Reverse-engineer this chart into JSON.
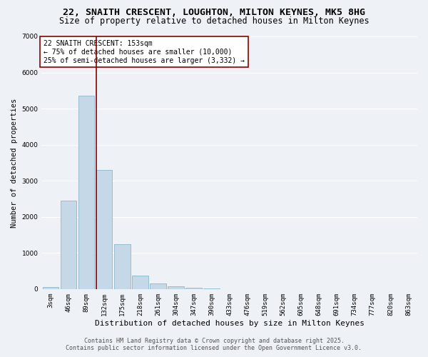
{
  "title": "22, SNAITH CRESCENT, LOUGHTON, MILTON KEYNES, MK5 8HG",
  "subtitle": "Size of property relative to detached houses in Milton Keynes",
  "xlabel": "Distribution of detached houses by size in Milton Keynes",
  "ylabel": "Number of detached properties",
  "categories": [
    "3sqm",
    "46sqm",
    "89sqm",
    "132sqm",
    "175sqm",
    "218sqm",
    "261sqm",
    "304sqm",
    "347sqm",
    "390sqm",
    "433sqm",
    "476sqm",
    "519sqm",
    "562sqm",
    "605sqm",
    "648sqm",
    "691sqm",
    "734sqm",
    "777sqm",
    "820sqm",
    "863sqm"
  ],
  "values": [
    50,
    2450,
    5350,
    3300,
    1250,
    380,
    150,
    80,
    30,
    10,
    5,
    3,
    2,
    1,
    1,
    0,
    0,
    0,
    0,
    0,
    0
  ],
  "bar_color": "#c5d8e8",
  "bar_edge_color": "#7baec8",
  "vline_color": "#8b0000",
  "annotation_text": "22 SNAITH CRESCENT: 153sqm\n← 75% of detached houses are smaller (10,000)\n25% of semi-detached houses are larger (3,332) →",
  "annotation_box_color": "white",
  "annotation_box_edgecolor": "#8b0000",
  "annotation_fontsize": 7,
  "ylim": [
    0,
    7000
  ],
  "yticks": [
    0,
    1000,
    2000,
    3000,
    4000,
    5000,
    6000,
    7000
  ],
  "background_color": "#eef2f7",
  "grid_color": "white",
  "footer_line1": "Contains HM Land Registry data © Crown copyright and database right 2025.",
  "footer_line2": "Contains public sector information licensed under the Open Government Licence v3.0.",
  "title_fontsize": 9.5,
  "subtitle_fontsize": 8.5,
  "xlabel_fontsize": 8,
  "ylabel_fontsize": 7.5,
  "tick_fontsize": 6.5,
  "footer_fontsize": 6
}
